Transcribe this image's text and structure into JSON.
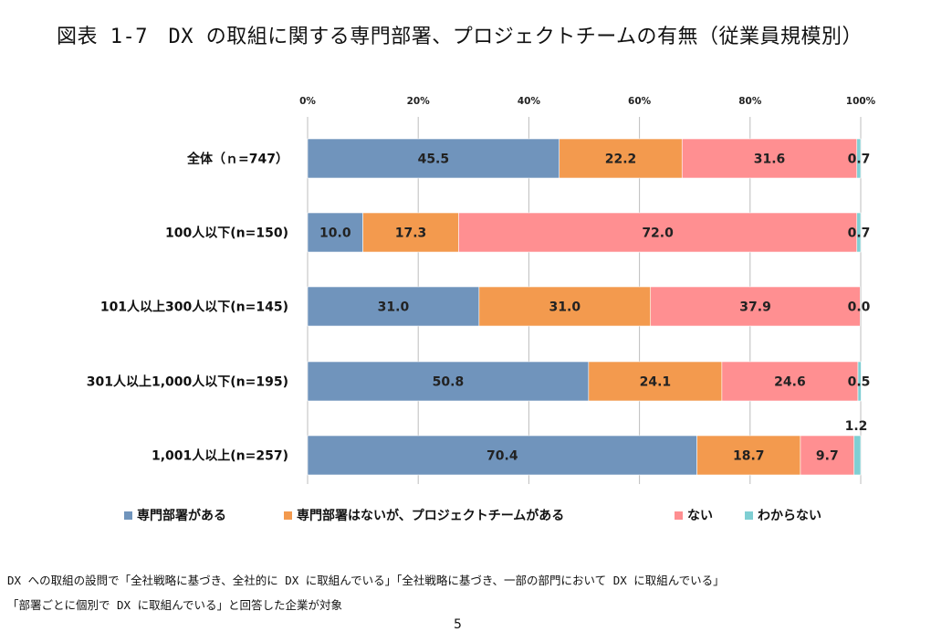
{
  "title": "図表 1-7　DX の取組に関する専門部署、プロジェクトチームの有無（従業員規模別）",
  "chart_data": {
    "type": "bar",
    "orientation": "horizontal",
    "stacked": true,
    "percent": true,
    "xlim": [
      0,
      100
    ],
    "ticks": [
      "0%",
      "20%",
      "40%",
      "60%",
      "80%",
      "100%"
    ],
    "tick_values": [
      0,
      20,
      40,
      60,
      80,
      100
    ],
    "grid": true,
    "categories": [
      "全体（ｎ=747）",
      "100人以下(n=150)",
      "101人以上300人以下(n=145)",
      "301人以上1,000人以下(n=195)",
      "1,001人以上(n=257)"
    ],
    "series": [
      {
        "name": "専門部署がある",
        "color": "#7094bc",
        "values": [
          45.5,
          10.0,
          31.0,
          50.8,
          70.4
        ]
      },
      {
        "name": "専門部署はないが、プロジェクトチームがある",
        "color": "#f39a4e",
        "values": [
          22.2,
          17.3,
          31.0,
          24.1,
          18.7
        ]
      },
      {
        "name": "ない",
        "color": "#ff8f91",
        "values": [
          31.6,
          72.0,
          37.9,
          24.6,
          9.7
        ]
      },
      {
        "name": "わからない",
        "color": "#7fcfd3",
        "values": [
          0.7,
          0.7,
          0.0,
          0.5,
          1.2
        ]
      }
    ],
    "legend_position": "bottom"
  },
  "notes": [
    "DX への取組の設問で「全社戦略に基づき、全社的に DX に取組んでいる」「全社戦略に基づき、一部の部門において DX に取組んでいる」",
    "「部署ごとに個別で DX に取組んでいる」と回答した企業が対象"
  ],
  "page_number": "5"
}
